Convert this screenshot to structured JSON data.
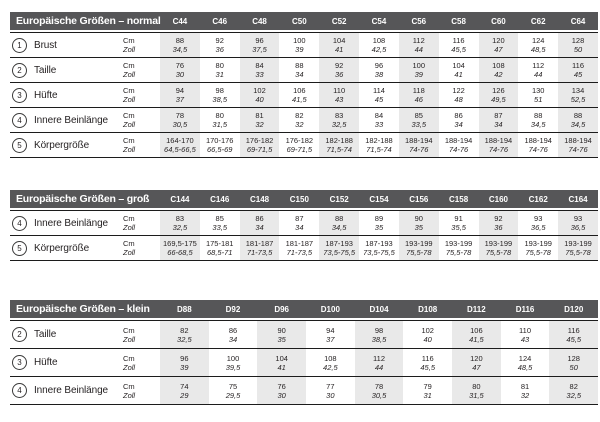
{
  "colors": {
    "header_bg": "#565658",
    "header_text": "#ffffff",
    "column_stripe": "#e9e9e9",
    "row_line": "#1c1c1c",
    "text": "#231f20"
  },
  "units": {
    "cm": "Cm",
    "zoll": "Zoll"
  },
  "tables": [
    {
      "id": "normal",
      "title": "Europäische Größen – normal",
      "sizes": [
        "C44",
        "C46",
        "C48",
        "C50",
        "C52",
        "C54",
        "C56",
        "C58",
        "C60",
        "C62",
        "C64"
      ],
      "rows": [
        {
          "num": "1",
          "label": "Brust",
          "cm": [
            "88",
            "92",
            "96",
            "100",
            "104",
            "108",
            "112",
            "116",
            "120",
            "124",
            "128"
          ],
          "zoll": [
            "34,5",
            "36",
            "37,5",
            "39",
            "41",
            "42,5",
            "44",
            "45,5",
            "47",
            "48,5",
            "50"
          ]
        },
        {
          "num": "2",
          "label": "Taille",
          "cm": [
            "76",
            "80",
            "84",
            "88",
            "92",
            "96",
            "100",
            "104",
            "108",
            "112",
            "116"
          ],
          "zoll": [
            "30",
            "31",
            "33",
            "34",
            "36",
            "38",
            "39",
            "41",
            "42",
            "44",
            "45"
          ]
        },
        {
          "num": "3",
          "label": "Hüfte",
          "cm": [
            "94",
            "98",
            "102",
            "106",
            "110",
            "114",
            "118",
            "122",
            "126",
            "130",
            "134"
          ],
          "zoll": [
            "37",
            "38,5",
            "40",
            "41,5",
            "43",
            "45",
            "46",
            "48",
            "49,5",
            "51",
            "52,5"
          ]
        },
        {
          "num": "4",
          "label": "Innere Beinlänge",
          "cm": [
            "78",
            "80",
            "81",
            "82",
            "83",
            "84",
            "85",
            "86",
            "87",
            "88",
            "88"
          ],
          "zoll": [
            "30,5",
            "31,5",
            "32",
            "32",
            "32,5",
            "33",
            "33,5",
            "34",
            "34",
            "34,5",
            "34,5"
          ]
        },
        {
          "num": "5",
          "label": "Körpergröße",
          "cm": [
            "164-170",
            "170-176",
            "176-182",
            "176-182",
            "182-188",
            "182-188",
            "188-194",
            "188-194",
            "188-194",
            "188-194",
            "188-194"
          ],
          "zoll": [
            "64,5-66,5",
            "66,5-69",
            "69-71,5",
            "69-71,5",
            "71,5-74",
            "71,5-74",
            "74-76",
            "74-76",
            "74-76",
            "74-76",
            "74-76"
          ]
        }
      ]
    },
    {
      "id": "gross",
      "title": "Europäische Größen – groß",
      "sizes": [
        "C144",
        "C146",
        "C148",
        "C150",
        "C152",
        "C154",
        "C156",
        "C158",
        "C160",
        "C162",
        "C164"
      ],
      "rows": [
        {
          "num": "4",
          "label": "Innere Beinlänge",
          "cm": [
            "83",
            "85",
            "86",
            "87",
            "88",
            "89",
            "90",
            "91",
            "92",
            "93",
            "93"
          ],
          "zoll": [
            "32,5",
            "33,5",
            "34",
            "34",
            "34,5",
            "35",
            "35",
            "35,5",
            "36",
            "36,5",
            "36,5"
          ]
        },
        {
          "num": "5",
          "label": "Körpergröße",
          "cm": [
            "169,5-175",
            "175-181",
            "181-187",
            "181-187",
            "187-193",
            "187-193",
            "193-199",
            "193-199",
            "193-199",
            "193-199",
            "193-199"
          ],
          "zoll": [
            "66-68,5",
            "68,5-71",
            "71-73,5",
            "71-73,5",
            "73,5-75,5",
            "73,5-75,5",
            "75,5-78",
            "75,5-78",
            "75,5-78",
            "75,5-78",
            "75,5-78"
          ]
        }
      ]
    },
    {
      "id": "klein",
      "title": "Europäische Größen – klein",
      "sizes": [
        "D88",
        "D92",
        "D96",
        "D100",
        "D104",
        "D108",
        "D112",
        "D116",
        "D120"
      ],
      "rows": [
        {
          "num": "2",
          "label": "Taille",
          "cm": [
            "82",
            "86",
            "90",
            "94",
            "98",
            "102",
            "106",
            "110",
            "116"
          ],
          "zoll": [
            "32,5",
            "34",
            "35",
            "37",
            "38,5",
            "40",
            "41,5",
            "43",
            "45,5"
          ]
        },
        {
          "num": "3",
          "label": "Hüfte",
          "cm": [
            "96",
            "100",
            "104",
            "108",
            "112",
            "116",
            "120",
            "124",
            "128"
          ],
          "zoll": [
            "39",
            "39,5",
            "41",
            "42,5",
            "44",
            "45,5",
            "47",
            "48,5",
            "50"
          ]
        },
        {
          "num": "4",
          "label": "Innere Beinlänge",
          "cm": [
            "74",
            "75",
            "76",
            "77",
            "78",
            "79",
            "80",
            "81",
            "82"
          ],
          "zoll": [
            "29",
            "29,5",
            "30",
            "30",
            "30,5",
            "31",
            "31,5",
            "32",
            "32,5"
          ]
        }
      ]
    }
  ]
}
